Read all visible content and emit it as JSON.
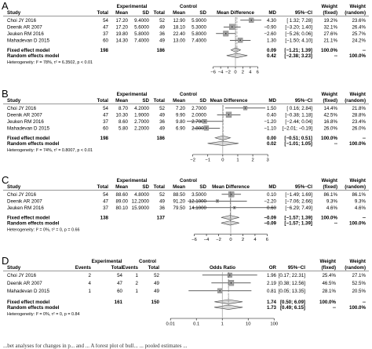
{
  "colors": {
    "text": "#000000",
    "square": "#a0a0a0",
    "diamond": "#d9d9d9",
    "line": "#333333"
  },
  "chart_data": [
    {
      "panel": "A",
      "type": "forest",
      "measure": "Mean Difference",
      "group_labels": [
        "Experimental",
        "Control"
      ],
      "columns": [
        "Study",
        "Total",
        "Mean",
        "SD",
        "Total",
        "Mean",
        "SD",
        "MD",
        "95%−CI",
        "Weight (fixed)",
        "Weight (random)"
      ],
      "studies": [
        {
          "name": "Choi JY 2016",
          "n1": "54",
          "m1": "17.20",
          "sd1": "9.4000",
          "n2": "52",
          "m2": "12.90",
          "sd2": "5.9000",
          "est": 4.3,
          "lo": 1.32,
          "hi": 7.28,
          "ci": "4.30 [ 1.32; 7.28]",
          "wf": "19.2%",
          "wr": "23.6%"
        },
        {
          "name": "Deenik AR 2007",
          "n1": "47",
          "m1": "17.20",
          "sd1": "5.6000",
          "n2": "49",
          "m2": "18.10",
          "sd2": "5.3000",
          "est": -0.9,
          "lo": -3.2,
          "hi": 1.4,
          "ci": "−0.90 [−3.20; 1.40]",
          "wf": "32.1%",
          "wr": "26.4%"
        },
        {
          "name": "Jeuken RM 2016",
          "n1": "37",
          "m1": "19.80",
          "sd1": "5.8000",
          "n2": "36",
          "m2": "22.40",
          "sd2": "5.8000",
          "est": -2.6,
          "lo": -5.26,
          "hi": 0.06,
          "ci": "−2.60 [−5.26; 0.06]",
          "wf": "27.6%",
          "wr": "25.7%"
        },
        {
          "name": "Mahadevan D 2015",
          "n1": "60",
          "m1": "14.30",
          "sd1": "7.4000",
          "n2": "49",
          "m2": "13.00",
          "sd2": "7.4000",
          "est": 1.3,
          "lo": -1.5,
          "hi": 4.1,
          "ci": "1.30 [−1.50; 4.10]",
          "wf": "21.1%",
          "wr": "24.2%"
        }
      ],
      "fixed": {
        "label": "Fixed effect model",
        "n1": "198",
        "n2": "186",
        "est": 0.09,
        "lo": -1.21,
        "hi": 1.39,
        "ci": "0.09 [−1.21; 1.39]",
        "wf": "100.0%",
        "wr": "--"
      },
      "random": {
        "label": "Random effects model",
        "est": 0.42,
        "lo": -2.38,
        "hi": 3.23,
        "ci": "0.42 [−2.38; 3.23]",
        "wf": "--",
        "wr": "100.0%"
      },
      "heterogeneity": "Heterogeneity: I² = 78%, τ² = 6.3502, p < 0.01",
      "axis": {
        "ticks": [
          -6,
          -4,
          -2,
          0,
          2,
          4,
          6
        ],
        "xlim": [
          -7,
          7
        ]
      }
    },
    {
      "panel": "B",
      "type": "forest",
      "measure": "Mean Difference",
      "group_labels": [
        "Experimental",
        "Control"
      ],
      "columns": [
        "Study",
        "Total",
        "Mean",
        "SD",
        "Total",
        "Mean",
        "SD",
        "MD",
        "95%−CI",
        "Weight (fixed)",
        "Weight (random)"
      ],
      "studies": [
        {
          "name": "Choi JY 2016",
          "n1": "54",
          "m1": "8.70",
          "sd1": "4.2000",
          "n2": "52",
          "m2": "7.20",
          "sd2": "2.7000",
          "est": 1.5,
          "lo": 0.16,
          "hi": 2.84,
          "ci": "1.50 [ 0.16; 2.84]",
          "wf": "14.4%",
          "wr": "21.8%"
        },
        {
          "name": "Deenik AR 2007",
          "n1": "47",
          "m1": "10.30",
          "sd1": "1.9000",
          "n2": "49",
          "m2": "9.90",
          "sd2": "2.0000",
          "est": 0.4,
          "lo": -0.38,
          "hi": 1.18,
          "ci": "0.40 [−0.38; 1.18]",
          "wf": "42.5%",
          "wr": "28.8%"
        },
        {
          "name": "Jeuken RM 2016",
          "n1": "37",
          "m1": "8.60",
          "sd1": "2.7000",
          "n2": "36",
          "m2": "9.80",
          "sd2": "2.7000",
          "est": -1.2,
          "lo": -2.44,
          "hi": 0.04,
          "ci": "−1.20 [−2.44; 0.04]",
          "wf": "16.8%",
          "wr": "23.4%"
        },
        {
          "name": "Mahadevan D 2015",
          "n1": "60",
          "m1": "5.80",
          "sd1": "2.2000",
          "n2": "49",
          "m2": "6.90",
          "sd2": "2.8000",
          "est": -1.1,
          "lo": -2.01,
          "hi": -0.19,
          "ci": "−1.10 [−2.01; −0.19]",
          "wf": "26.0%",
          "wr": "26.0%"
        }
      ],
      "fixed": {
        "label": "Fixed effect model",
        "n1": "198",
        "n2": "186",
        "est": 0.0,
        "lo": -0.51,
        "hi": 0.51,
        "ci": "0.00 [−0.51; 0.51]",
        "wf": "100.0%",
        "wr": "--"
      },
      "random": {
        "label": "Random effects model",
        "est": 0.02,
        "lo": -1.01,
        "hi": 1.05,
        "ci": "0.02 [−1.01; 1.05]",
        "wf": "--",
        "wr": "100.0%"
      },
      "heterogeneity": "Heterogeneity: I² = 74%, τ² = 0.8007, p < 0.01",
      "axis": {
        "ticks": [
          -2,
          -1,
          0,
          1,
          2,
          3
        ],
        "xlim": [
          -2.4,
          3.2
        ]
      }
    },
    {
      "panel": "C",
      "type": "forest",
      "measure": "Mean Difference",
      "group_labels": [
        "Experimental",
        "Control"
      ],
      "columns": [
        "Study",
        "Total",
        "Mean",
        "SD",
        "Total",
        "Mean",
        "SD",
        "MD",
        "95%−CI",
        "Weight (fixed)",
        "Weight (random)"
      ],
      "studies": [
        {
          "name": "Choi JY 2016",
          "n1": "54",
          "m1": "88.60",
          "sd1": "4.8000",
          "n2": "52",
          "m2": "88.50",
          "sd2": "3.5000",
          "est": 0.1,
          "lo": -1.49,
          "hi": 1.69,
          "ci": "0.10 [−1.49; 1.69]",
          "wf": "86.1%",
          "wr": "86.1%"
        },
        {
          "name": "Deenik AR 2007",
          "n1": "47",
          "m1": "89.00",
          "sd1": "12.2000",
          "n2": "49",
          "m2": "91.20",
          "sd2": "12.1000",
          "est": -2.2,
          "lo": -7.06,
          "hi": 2.66,
          "ci": "−2.20 [−7.06; 2.66]",
          "wf": "9.3%",
          "wr": "9.3%"
        },
        {
          "name": "Jeuken RM 2016",
          "n1": "37",
          "m1": "80.10",
          "sd1": "15.9000",
          "n2": "36",
          "m2": "79.50",
          "sd2": "14.1000",
          "est": 0.6,
          "lo": -6.29,
          "hi": 7.49,
          "ci": "0.60 [−6.29; 7.49]",
          "wf": "4.6%",
          "wr": "4.6%"
        }
      ],
      "fixed": {
        "label": "Fixed effect model",
        "n1": "138",
        "n2": "137",
        "est": -0.09,
        "lo": -1.57,
        "hi": 1.39,
        "ci": "−0.09 [−1.57; 1.39]",
        "wf": "100.0%",
        "wr": "--"
      },
      "random": {
        "label": "Random effects model",
        "est": -0.09,
        "lo": -1.57,
        "hi": 1.39,
        "ci": "−0.09 [−1.57; 1.39]",
        "wf": "--",
        "wr": "100.0%"
      },
      "heterogeneity": "Heterogeneity: I² = 0%, τ² = 0, p = 0.66",
      "axis": {
        "ticks": [
          -6,
          -4,
          -2,
          0,
          2,
          4,
          6
        ],
        "xlim": [
          -7.5,
          7.5
        ]
      }
    },
    {
      "panel": "D",
      "type": "forest",
      "measure": "Odds Ratio",
      "scale": "log",
      "group_labels": [
        "Experimental",
        "Control"
      ],
      "columns": [
        "Study",
        "Events",
        "Total",
        "Events",
        "Total",
        "OR",
        "95%−CI",
        "Weight (fixed)",
        "Weight (random)"
      ],
      "studies": [
        {
          "name": "Choi JY 2016",
          "e1": "2",
          "n1": "54",
          "e2": "1",
          "n2": "52",
          "est": 1.96,
          "lo": 0.17,
          "hi": 22.31,
          "ci": "1.96 [0.17; 22.31]",
          "wf": "25.4%",
          "wr": "27.1%"
        },
        {
          "name": "Deenik AR 2007",
          "e1": "4",
          "n1": "47",
          "e2": "2",
          "n2": "49",
          "est": 2.19,
          "lo": 0.38,
          "hi": 12.56,
          "ci": "2.19 [0.38; 12.56]",
          "wf": "46.5%",
          "wr": "52.5%"
        },
        {
          "name": "Mahadevan D 2015",
          "e1": "1",
          "n1": "60",
          "e2": "1",
          "n2": "49",
          "est": 0.81,
          "lo": 0.05,
          "hi": 13.35,
          "ci": "0.81 [0.05; 13.35]",
          "wf": "28.1%",
          "wr": "20.5%"
        }
      ],
      "fixed": {
        "label": "Fixed effect model",
        "n1": "161",
        "n2": "150",
        "est": 1.74,
        "lo": 0.5,
        "hi": 6.09,
        "ci": "1.74 [0.50; 6.09]",
        "wf": "100.0%",
        "wr": "--"
      },
      "random": {
        "label": "Random effects model",
        "est": 1.73,
        "lo": 0.49,
        "hi": 6.15,
        "ci": "1.73 [0.49; 6.15]",
        "wf": "--",
        "wr": "100.0%"
      },
      "heterogeneity": "Heterogeneity: I² = 0%, τ² = 0, p = 0.84",
      "axis": {
        "ticks": [
          0.01,
          0.1,
          1,
          10,
          100
        ],
        "tick_labels": [
          "0.01",
          "0.1",
          "1",
          "10",
          "100"
        ],
        "xlim": [
          0.008,
          130
        ]
      }
    }
  ],
  "caption": "...bet analyses for changes in p... and ... A forest plot of bull... ... pooled estimates ..."
}
